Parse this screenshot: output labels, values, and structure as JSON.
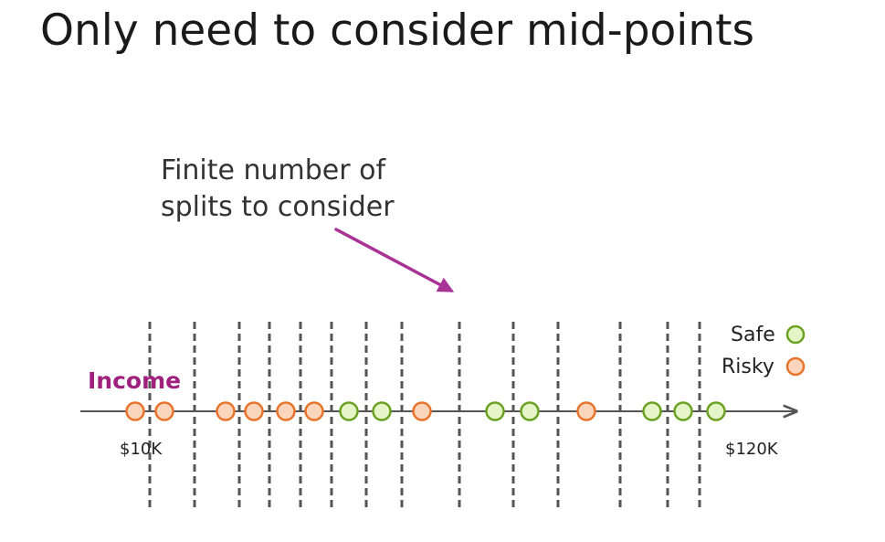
{
  "title": "Only need to consider mid-points",
  "annotation": {
    "lines": [
      "Finite number of",
      "splits to consider"
    ]
  },
  "axis": {
    "label": "Income",
    "min_label": "$10K",
    "max_label": "$120K"
  },
  "legend": {
    "safe_label": "Safe",
    "risky_label": "Risky"
  },
  "colors": {
    "safe_stroke": "#6aa121",
    "safe_fill": "#e6f5c7",
    "risky_stroke": "#e8732a",
    "risky_fill": "#fcd6bc",
    "axis_label": "#a0207e",
    "arrow": "#a83296",
    "split_line": "#555555",
    "axis_line": "#555555"
  },
  "chart_data": {
    "type": "scatter",
    "xlabel": "Income",
    "points": [
      {
        "class": "risky"
      },
      {
        "class": "risky"
      },
      {
        "class": "risky"
      },
      {
        "class": "risky"
      },
      {
        "class": "risky"
      },
      {
        "class": "risky"
      },
      {
        "class": "safe"
      },
      {
        "class": "safe"
      },
      {
        "class": "risky"
      },
      {
        "class": "safe"
      },
      {
        "class": "safe"
      },
      {
        "class": "risky"
      },
      {
        "class": "safe"
      },
      {
        "class": "safe"
      },
      {
        "class": "safe"
      }
    ]
  }
}
